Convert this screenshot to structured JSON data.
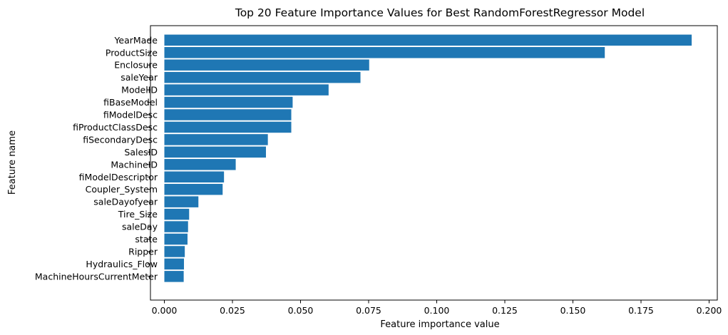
{
  "chart_data": {
    "type": "bar",
    "orientation": "horizontal",
    "title": "Top 20 Feature Importance Values for Best RandomForestRegressor Model",
    "xlabel": "Feature importance value",
    "ylabel": "Feature name",
    "xlim": [
      0,
      0.2035
    ],
    "xticks": [
      0.0,
      0.025,
      0.05,
      0.075,
      0.1,
      0.125,
      0.15,
      0.175,
      0.2
    ],
    "xtick_labels": [
      "0.000",
      "0.025",
      "0.050",
      "0.075",
      "0.100",
      "0.125",
      "0.150",
      "0.175",
      "0.200"
    ],
    "grid": false,
    "bar_color": "#1f77b4",
    "categories": [
      "YearMade",
      "ProductSize",
      "Enclosure",
      "saleYear",
      "ModelID",
      "fiBaseModel",
      "fiModelDesc",
      "fiProductClassDesc",
      "fiSecondaryDesc",
      "SalesID",
      "MachineID",
      "fiModelDescriptor",
      "Coupler_System",
      "saleDayofyear",
      "Tire_Size",
      "saleDay",
      "state",
      "Ripper",
      "Hydraulics_Flow",
      "MachineHoursCurrentMeter"
    ],
    "values": [
      0.1936,
      0.1617,
      0.0752,
      0.072,
      0.0603,
      0.0471,
      0.0466,
      0.0466,
      0.038,
      0.0373,
      0.0262,
      0.0219,
      0.0214,
      0.0125,
      0.0091,
      0.0087,
      0.0085,
      0.0075,
      0.0072,
      0.0071
    ]
  }
}
